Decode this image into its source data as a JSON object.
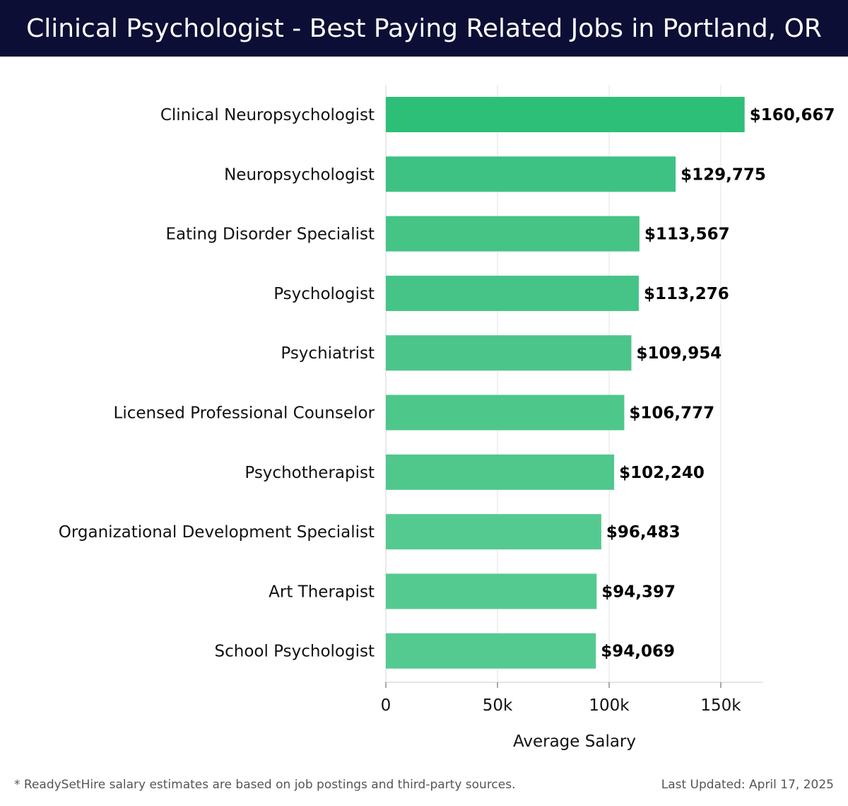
{
  "header": {
    "title": "Clinical Psychologist - Best Paying Related Jobs in Portland, OR"
  },
  "chart_data": {
    "type": "bar",
    "orientation": "horizontal",
    "title": "Clinical Psychologist - Best Paying Related Jobs in Portland, OR",
    "xlabel": "Average Salary",
    "ylabel": "",
    "xlim": [
      0,
      170000
    ],
    "x_ticks": [
      0,
      50000,
      100000,
      150000
    ],
    "x_tick_labels": [
      "0",
      "50k",
      "100k",
      "150k"
    ],
    "grid": "vertical",
    "categories": [
      "Clinical Neuropsychologist",
      "Neuropsychologist",
      "Eating Disorder Specialist",
      "Psychologist",
      "Psychiatrist",
      "Licensed Professional Counselor",
      "Psychotherapist",
      "Organizational Development Specialist",
      "Art Therapist",
      "School Psychologist"
    ],
    "values": [
      160667,
      129775,
      113567,
      113276,
      109954,
      106777,
      102240,
      96483,
      94397,
      94069
    ],
    "value_labels": [
      "$160,667",
      "$129,775",
      "$113,567",
      "$113,276",
      "$109,954",
      "$106,777",
      "$102,240",
      "$96,483",
      "$94,397",
      "$94,069"
    ],
    "bar_colors": [
      "#2dbf78",
      "#3dc283",
      "#45c486",
      "#46c487",
      "#4cc58a",
      "#4ec78b",
      "#50c88c",
      "#55ca90",
      "#55ca90",
      "#55ca90"
    ]
  },
  "footer": {
    "note": "* ReadySetHire salary estimates are based on job postings and third-party sources.",
    "updated": "Last Updated: April 17, 2025"
  }
}
